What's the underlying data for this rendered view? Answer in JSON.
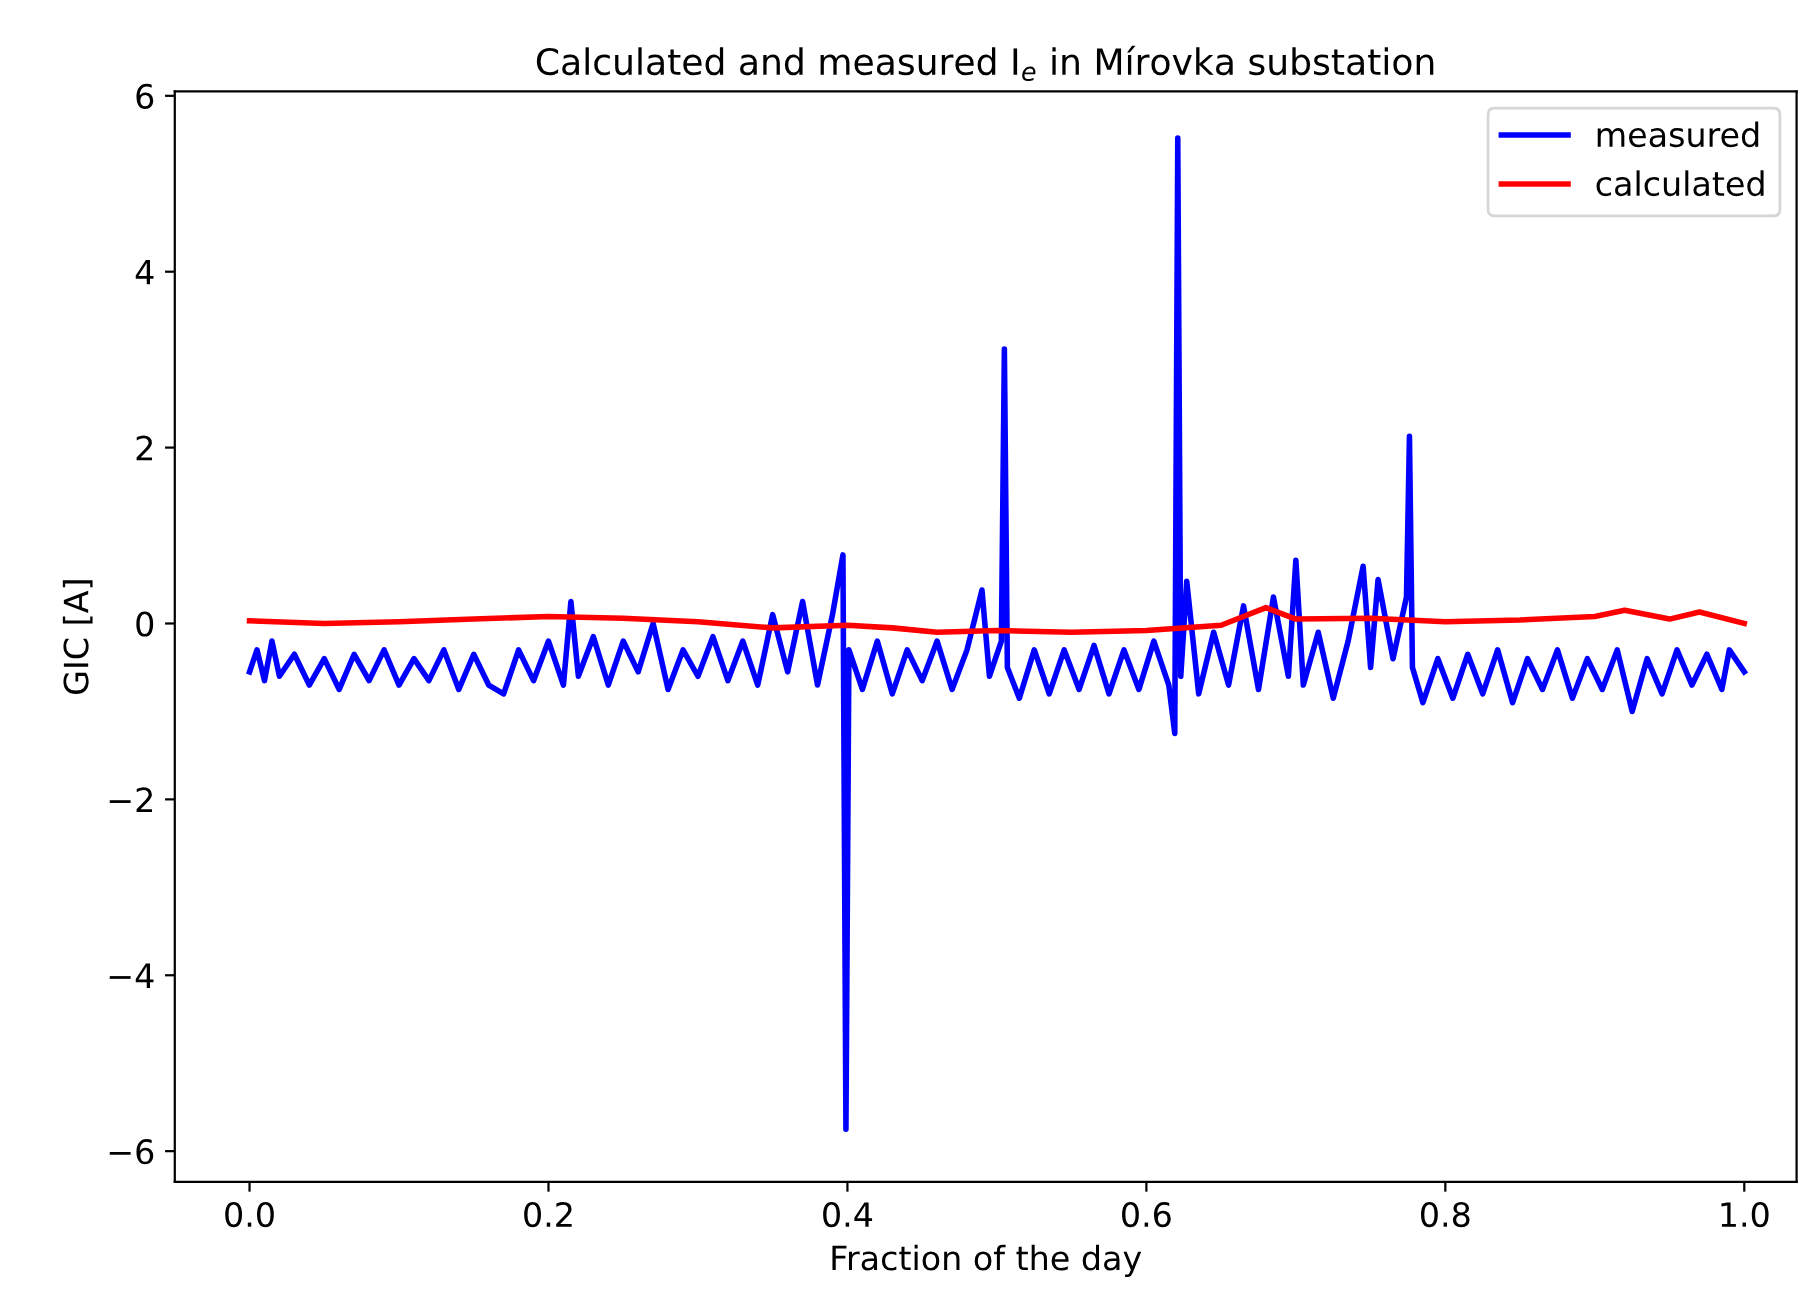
{
  "chart_data": {
    "type": "line",
    "title": "Calculated and measured I$_{e}$ in Mírovka substation",
    "xlabel": "Fraction of the day",
    "ylabel": "GIC [A]",
    "xlim": [
      -0.05,
      1.035
    ],
    "ylim": [
      -6.35,
      6.05
    ],
    "xticks": [
      {
        "value": 0,
        "label": "0.0"
      },
      {
        "value": 0.2,
        "label": "0.2"
      },
      {
        "value": 0.4,
        "label": "0.4"
      },
      {
        "value": 0.6,
        "label": "0.6"
      },
      {
        "value": 0.8,
        "label": "0.8"
      },
      {
        "value": 1,
        "label": "1.0"
      }
    ],
    "yticks": [
      -6,
      -4,
      -2,
      0,
      2,
      4,
      6
    ],
    "grid": false,
    "legend": "top right",
    "marker": "none",
    "line_style": "solid",
    "series": [
      {
        "name": "measured",
        "color": "#0000ff",
        "x": [
          0.0,
          0.005,
          0.01,
          0.015,
          0.02,
          0.03,
          0.04,
          0.05,
          0.06,
          0.07,
          0.08,
          0.09,
          0.1,
          0.11,
          0.12,
          0.13,
          0.14,
          0.15,
          0.16,
          0.17,
          0.18,
          0.19,
          0.2,
          0.21,
          0.215,
          0.22,
          0.23,
          0.24,
          0.25,
          0.26,
          0.27,
          0.28,
          0.29,
          0.3,
          0.31,
          0.32,
          0.33,
          0.34,
          0.35,
          0.36,
          0.37,
          0.38,
          0.39,
          0.397,
          0.399,
          0.401,
          0.41,
          0.42,
          0.43,
          0.44,
          0.45,
          0.46,
          0.47,
          0.48,
          0.49,
          0.495,
          0.503,
          0.505,
          0.507,
          0.515,
          0.525,
          0.535,
          0.545,
          0.555,
          0.565,
          0.575,
          0.585,
          0.595,
          0.605,
          0.615,
          0.619,
          0.621,
          0.623,
          0.627,
          0.635,
          0.645,
          0.655,
          0.665,
          0.675,
          0.685,
          0.695,
          0.7,
          0.705,
          0.715,
          0.725,
          0.735,
          0.745,
          0.75,
          0.755,
          0.765,
          0.774,
          0.776,
          0.778,
          0.785,
          0.795,
          0.805,
          0.815,
          0.825,
          0.835,
          0.845,
          0.855,
          0.865,
          0.875,
          0.885,
          0.895,
          0.905,
          0.915,
          0.925,
          0.935,
          0.945,
          0.955,
          0.965,
          0.975,
          0.985,
          0.99,
          1.0
        ],
        "values": [
          -0.55,
          -0.3,
          -0.65,
          -0.2,
          -0.6,
          -0.35,
          -0.7,
          -0.4,
          -0.75,
          -0.35,
          -0.65,
          -0.3,
          -0.7,
          -0.4,
          -0.65,
          -0.3,
          -0.75,
          -0.35,
          -0.7,
          -0.8,
          -0.3,
          -0.65,
          -0.2,
          -0.7,
          0.25,
          -0.6,
          -0.15,
          -0.7,
          -0.2,
          -0.55,
          0.0,
          -0.75,
          -0.3,
          -0.6,
          -0.15,
          -0.65,
          -0.2,
          -0.7,
          0.1,
          -0.55,
          0.25,
          -0.7,
          0.1,
          0.78,
          -5.75,
          -0.3,
          -0.75,
          -0.2,
          -0.8,
          -0.3,
          -0.65,
          -0.2,
          -0.75,
          -0.3,
          0.38,
          -0.6,
          -0.2,
          3.12,
          -0.5,
          -0.85,
          -0.3,
          -0.8,
          -0.3,
          -0.75,
          -0.25,
          -0.8,
          -0.3,
          -0.75,
          -0.2,
          -0.7,
          -1.25,
          5.52,
          -0.6,
          0.48,
          -0.8,
          -0.1,
          -0.7,
          0.2,
          -0.75,
          0.3,
          -0.6,
          0.72,
          -0.7,
          -0.1,
          -0.85,
          -0.2,
          0.65,
          -0.5,
          0.5,
          -0.4,
          0.3,
          2.13,
          -0.5,
          -0.9,
          -0.4,
          -0.85,
          -0.35,
          -0.8,
          -0.3,
          -0.9,
          -0.4,
          -0.75,
          -0.3,
          -0.85,
          -0.4,
          -0.75,
          -0.3,
          -1.0,
          -0.4,
          -0.8,
          -0.3,
          -0.7,
          -0.35,
          -0.75,
          -0.3,
          -0.55
        ]
      },
      {
        "name": "calculated",
        "color": "#ff0000",
        "x": [
          0,
          0.05,
          0.1,
          0.15,
          0.2,
          0.25,
          0.3,
          0.35,
          0.4,
          0.43,
          0.46,
          0.5,
          0.55,
          0.6,
          0.65,
          0.68,
          0.7,
          0.75,
          0.8,
          0.85,
          0.9,
          0.92,
          0.95,
          0.97,
          1.0
        ],
        "values": [
          0.03,
          0.0,
          0.02,
          0.05,
          0.08,
          0.06,
          0.02,
          -0.05,
          -0.02,
          -0.05,
          -0.1,
          -0.08,
          -0.1,
          -0.08,
          -0.02,
          0.18,
          0.05,
          0.06,
          0.02,
          0.04,
          0.08,
          0.15,
          0.05,
          0.13,
          0.0
        ]
      }
    ]
  }
}
